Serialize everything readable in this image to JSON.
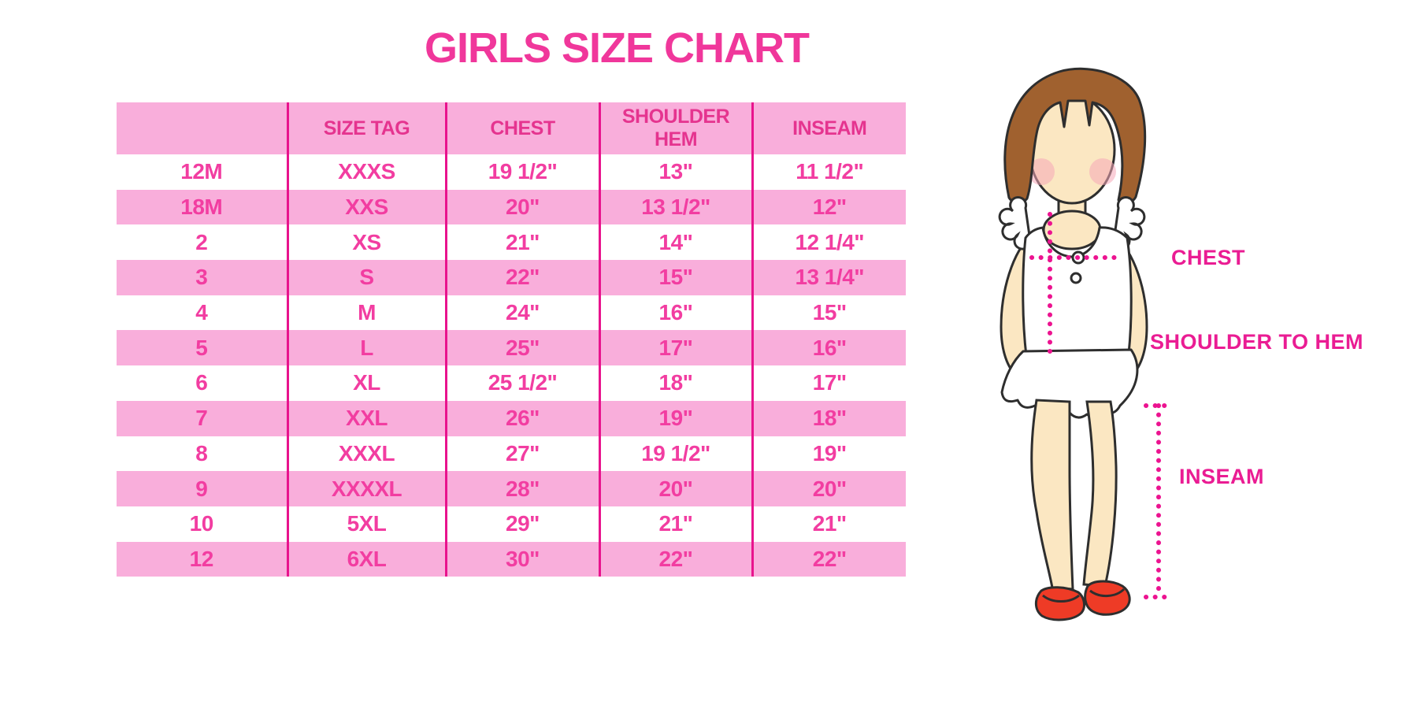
{
  "title": "GIRLS SIZE CHART",
  "colors": {
    "accent_text": "#F23DA1",
    "header_text": "#E5348F",
    "stripe_pink": "#F9AEDB",
    "divider_line": "#E8138D",
    "dotted_measure_line": "#EC1390",
    "hair_brown": "#A0612F",
    "skin": "#FBE7C2",
    "shoe_red": "#EE3B26"
  },
  "chart_data": {
    "type": "table",
    "title": "GIRLS SIZE CHART",
    "columns": [
      "",
      "SIZE TAG",
      "CHEST",
      "SHOULDER HEM",
      "INSEAM"
    ],
    "rows": [
      [
        "12M",
        "XXXS",
        "19 1/2\"",
        "13\"",
        "11 1/2\""
      ],
      [
        "18M",
        "XXS",
        "20\"",
        "13 1/2\"",
        "12\""
      ],
      [
        "2",
        "XS",
        "21\"",
        "14\"",
        "12 1/4\""
      ],
      [
        "3",
        "S",
        "22\"",
        "15\"",
        "13 1/4\""
      ],
      [
        "4",
        "M",
        "24\"",
        "16\"",
        "15\""
      ],
      [
        "5",
        "L",
        "25\"",
        "17\"",
        "16\""
      ],
      [
        "6",
        "XL",
        "25 1/2\"",
        "18\"",
        "17\""
      ],
      [
        "7",
        "XXL",
        "26\"",
        "19\"",
        "18\""
      ],
      [
        "8",
        "XXXL",
        "27\"",
        "19 1/2\"",
        "19\""
      ],
      [
        "9",
        "XXXXL",
        "28\"",
        "20\"",
        "20\""
      ],
      [
        "10",
        "5XL",
        "29\"",
        "21\"",
        "21\""
      ],
      [
        "12",
        "6XL",
        "30\"",
        "22\"",
        "22\""
      ]
    ],
    "annotations": [
      "CHEST",
      "SHOULDER TO HEM",
      "INSEAM"
    ],
    "legend_position": "none",
    "grid": "column-dividers-only"
  },
  "figure": {
    "labels": {
      "chest": "CHEST",
      "shoulder_to_hem": "SHOULDER TO HEM",
      "inseam": "INSEAM"
    }
  }
}
